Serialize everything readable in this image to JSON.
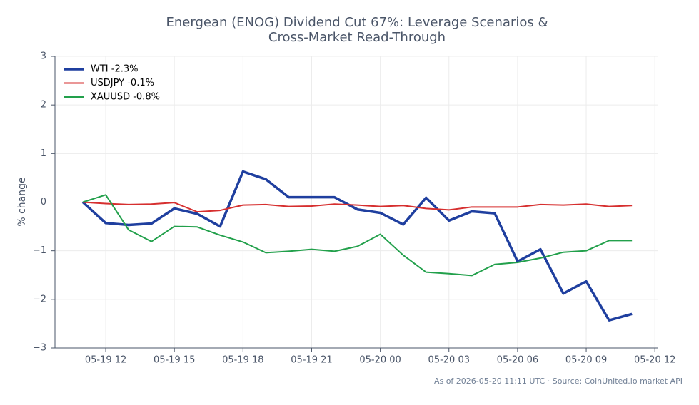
{
  "chart_data": {
    "type": "line",
    "title": [
      "Energean (ENOG) Dividend Cut 67%: Leverage Scenarios &",
      "Cross-Market Read-Through"
    ],
    "ylabel": "% change",
    "footer": "As of 2026-05-20 11:11 UTC · Source: CoinUnited.io market API",
    "x": [
      "05-19 11",
      "05-19 12",
      "05-19 13",
      "05-19 14",
      "05-19 15",
      "05-19 16",
      "05-19 17",
      "05-19 18",
      "05-19 19",
      "05-19 20",
      "05-19 21",
      "05-19 22",
      "05-19 23",
      "05-20 00",
      "05-20 01",
      "05-20 02",
      "05-20 03",
      "05-20 04",
      "05-20 05",
      "05-20 06",
      "05-20 07",
      "05-20 08",
      "05-20 09",
      "05-20 10",
      "05-20 11"
    ],
    "xlim": [
      "05-19 09:47",
      "05-20 12:09"
    ],
    "xticks": [
      "05-19 12",
      "05-19 15",
      "05-19 18",
      "05-19 21",
      "05-20 00",
      "05-20 03",
      "05-20 06",
      "05-20 09",
      "05-20 12"
    ],
    "ylim": [
      -3,
      3
    ],
    "yticks": [
      {
        "value": -3,
        "label": "−3"
      },
      {
        "value": -2,
        "label": "−2"
      },
      {
        "value": -1,
        "label": "−1"
      },
      0,
      1,
      2,
      3
    ],
    "grid": true,
    "hline": 0,
    "legend": "upper left",
    "series": [
      {
        "name": "WTI -2.3%",
        "color": "#1f3f9f",
        "width": 3.5,
        "values": [
          0,
          -0.43,
          -0.47,
          -0.44,
          -0.13,
          -0.24,
          -0.5,
          0.63,
          0.47,
          0.1,
          0.1,
          0.1,
          -0.15,
          -0.22,
          -0.46,
          0.09,
          -0.38,
          -0.19,
          -0.23,
          -1.22,
          -0.97,
          -1.88,
          -1.63,
          -2.43,
          -2.3
        ]
      },
      {
        "name": "USDJPY -0.1%",
        "color": "#d62f2f",
        "width": 2,
        "values": [
          0,
          -0.03,
          -0.05,
          -0.04,
          -0.01,
          -0.2,
          -0.17,
          -0.06,
          -0.05,
          -0.09,
          -0.08,
          -0.04,
          -0.06,
          -0.09,
          -0.07,
          -0.13,
          -0.16,
          -0.1,
          -0.1,
          -0.1,
          -0.05,
          -0.06,
          -0.04,
          -0.09,
          -0.07
        ]
      },
      {
        "name": "XAUUSD -0.8%",
        "color": "#22a04b",
        "width": 2,
        "values": [
          0,
          0.15,
          -0.57,
          -0.81,
          -0.5,
          -0.51,
          -0.68,
          -0.82,
          -1.04,
          -1.01,
          -0.97,
          -1.01,
          -0.91,
          -0.66,
          -1.09,
          -1.44,
          -1.47,
          -1.51,
          -1.28,
          -1.24,
          -1.15,
          -1.03,
          -1,
          -0.79,
          -0.79
        ]
      }
    ]
  }
}
